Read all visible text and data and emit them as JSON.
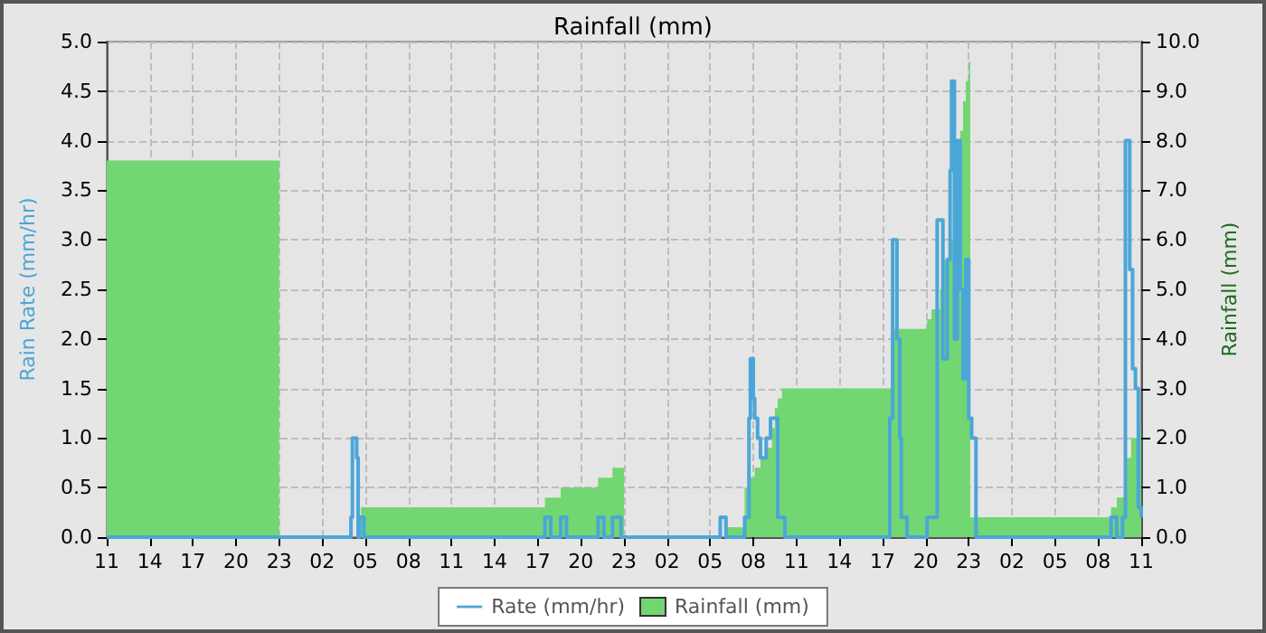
{
  "chart_data": {
    "type": "step",
    "title": "Rainfall (mm)",
    "ylabel": "Rain Rate (mm/hr)",
    "y2label": "Rainfall (mm)",
    "xlim": [
      "--01-01T11:00",
      "--01-04T11:00"
    ],
    "xticks": [
      {
        "value": "--01-01T11:00",
        "label": "11"
      },
      {
        "value": "--01-01T14:00",
        "label": "14"
      },
      {
        "value": "--01-01T17:00",
        "label": "17"
      },
      {
        "value": "--01-01T20:00",
        "label": "20"
      },
      {
        "value": "--01-01T23:00",
        "label": "23"
      },
      {
        "value": "--01-02T02:00",
        "label": "02"
      },
      {
        "value": "--01-02T05:00",
        "label": "05"
      },
      {
        "value": "--01-02T08:00",
        "label": "08"
      },
      {
        "value": "--01-02T11:00",
        "label": "11"
      },
      {
        "value": "--01-02T14:00",
        "label": "14"
      },
      {
        "value": "--01-02T17:00",
        "label": "17"
      },
      {
        "value": "--01-02T20:00",
        "label": "20"
      },
      {
        "value": "--01-02T23:00",
        "label": "23"
      },
      {
        "value": "--01-03T02:00",
        "label": "02"
      },
      {
        "value": "--01-03T05:00",
        "label": "05"
      },
      {
        "value": "--01-03T08:00",
        "label": "08"
      },
      {
        "value": "--01-03T11:00",
        "label": "11"
      },
      {
        "value": "--01-03T14:00",
        "label": "14"
      },
      {
        "value": "--01-03T17:00",
        "label": "17"
      },
      {
        "value": "--01-03T20:00",
        "label": "20"
      },
      {
        "value": "--01-03T23:00",
        "label": "23"
      },
      {
        "value": "--01-04T02:00",
        "label": "02"
      },
      {
        "value": "--01-04T05:00",
        "label": "05"
      },
      {
        "value": "--01-04T08:00",
        "label": "08"
      },
      {
        "value": "--01-04T11:00",
        "label": "11"
      }
    ],
    "ylim": [
      0,
      5
    ],
    "yticks": [
      {
        "value": 0,
        "label": "0.0"
      },
      0.5,
      {
        "value": 1,
        "label": "1.0"
      },
      1.5,
      {
        "value": 2,
        "label": "2.0"
      },
      2.5,
      {
        "value": 3,
        "label": "3.0"
      },
      3.5,
      {
        "value": 4,
        "label": "4.0"
      },
      4.5,
      {
        "value": 5,
        "label": "5.0"
      }
    ],
    "y2lim": [
      0,
      10
    ],
    "y2ticks": [
      {
        "value": 0,
        "label": "0.0"
      },
      {
        "value": 1,
        "label": "1.0"
      },
      {
        "value": 2,
        "label": "2.0"
      },
      {
        "value": 3,
        "label": "3.0"
      },
      {
        "value": 4,
        "label": "4.0"
      },
      {
        "value": 5,
        "label": "5.0"
      },
      {
        "value": 6,
        "label": "6.0"
      },
      {
        "value": 7,
        "label": "7.0"
      },
      {
        "value": 8,
        "label": "8.0"
      },
      {
        "value": 9,
        "label": "9.0"
      },
      {
        "value": 10,
        "label": "10.0"
      }
    ],
    "grid": true,
    "legend": "bottom",
    "series": [
      {
        "name": "Rainfall (mm)",
        "type": "area",
        "axis": "y2",
        "color": "#72d672",
        "x": [
          "--01-01T11:00",
          "--01-01T23:00",
          "--01-02T04:42",
          "--01-02T17:30",
          "--01-02T18:36",
          "--01-02T21:12",
          "--01-02T22:12",
          "--01-02T23:00",
          "--01-03T06:06",
          "--01-03T07:24",
          "--01-03T07:48",
          "--01-03T08:06",
          "--01-03T08:30",
          "--01-03T09:00",
          "--01-03T09:18",
          "--01-03T09:30",
          "--01-03T09:42",
          "--01-03T10:00",
          "--01-03T17:36",
          "--01-03T17:48",
          "--01-03T20:06",
          "--01-03T20:24",
          "--01-03T21:00",
          "--01-03T21:18",
          "--01-03T21:36",
          "--01-03T21:54",
          "--01-03T22:12",
          "--01-03T22:24",
          "--01-03T22:36",
          "--01-03T22:48",
          "--01-03T23:00",
          "--01-03T23:06",
          "--01-04T08:54",
          "--01-04T09:18",
          "--01-04T10:00",
          "--01-04T10:18",
          "--01-04T10:42",
          "--01-04T11:00"
        ],
        "values": [
          7.6,
          0,
          0.6,
          0.8,
          1.0,
          1.2,
          1.4,
          0,
          0.2,
          1.0,
          1.2,
          1.4,
          1.6,
          1.8,
          2.2,
          2.6,
          2.8,
          3.0,
          3.3,
          4.2,
          4.4,
          4.6,
          5.0,
          5.6,
          6.0,
          6.8,
          7.6,
          8.2,
          8.8,
          9.2,
          9.6,
          0.4,
          0.6,
          0.8,
          1.6,
          2.0,
          2.2,
          2.2
        ]
      },
      {
        "name": "Rate (mm/hr)",
        "color": "#4ba6d8",
        "x": [
          "--01-01T11:00",
          "--01-02T04:00",
          "--01-02T04:06",
          "--01-02T04:24",
          "--01-02T04:30",
          "--01-02T04:36",
          "--01-02T04:54",
          "--01-02T17:30",
          "--01-02T17:54",
          "--01-02T18:36",
          "--01-02T19:00",
          "--01-02T21:12",
          "--01-02T21:36",
          "--01-02T22:12",
          "--01-02T22:48",
          "--01-03T05:42",
          "--01-03T06:06",
          "--01-03T07:24",
          "--01-03T07:42",
          "--01-03T07:48",
          "--01-03T08:00",
          "--01-03T08:06",
          "--01-03T08:18",
          "--01-03T08:30",
          "--01-03T08:54",
          "--01-03T09:12",
          "--01-03T09:42",
          "--01-03T10:12",
          "--01-03T17:30",
          "--01-03T17:42",
          "--01-03T18:00",
          "--01-03T18:12",
          "--01-03T18:18",
          "--01-03T18:42",
          "--01-03T20:06",
          "--01-03T20:48",
          "--01-03T21:12",
          "--01-03T21:30",
          "--01-03T21:42",
          "--01-03T21:48",
          "--01-03T22:00",
          "--01-03T22:12",
          "--01-03T22:24",
          "--01-03T22:36",
          "--01-03T22:48",
          "--01-03T23:00",
          "--01-03T23:12",
          "--01-03T23:30",
          "--01-04T08:54",
          "--01-04T09:18",
          "--01-04T09:42",
          "--01-04T09:54",
          "--01-04T10:12",
          "--01-04T10:24",
          "--01-04T10:36",
          "--01-04T10:48",
          "--01-04T11:00"
        ],
        "values": [
          0,
          0.2,
          1.0,
          0.8,
          0,
          0.2,
          0,
          0.2,
          0,
          0.2,
          0,
          0.2,
          0,
          0.2,
          0,
          0.2,
          0,
          0.2,
          1.2,
          1.8,
          1.4,
          1.2,
          1.0,
          0.8,
          1.0,
          1.2,
          0.2,
          0,
          1.2,
          3.0,
          2.0,
          1.0,
          0.2,
          0,
          0.2,
          3.2,
          1.8,
          2.8,
          3.7,
          4.6,
          2.0,
          4.0,
          2.5,
          1.6,
          2.8,
          1.2,
          1.0,
          0,
          0.2,
          0,
          0.2,
          4.0,
          2.7,
          1.7,
          1.5,
          0.3,
          0.2
        ]
      }
    ]
  }
}
